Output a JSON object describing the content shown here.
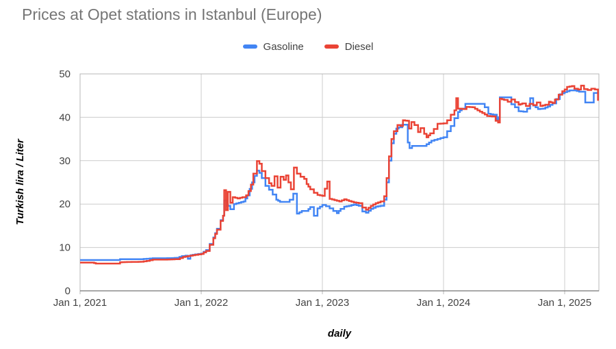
{
  "title": "Prices at Opet stations in Istanbul (Europe)",
  "axis": {
    "y_title": "Turkish lira / Liter",
    "x_title": "daily"
  },
  "colors": {
    "gasoline": "#4285F4",
    "diesel": "#EA4335",
    "title_text": "#757575",
    "axis_text": "#424242",
    "gridline": "#cccccc",
    "plot_border": "#b7b7b7",
    "axis_line": "#757575",
    "background": "#ffffff"
  },
  "chart_data": {
    "type": "line",
    "title": "Prices at Opet stations in Istanbul (Europe)",
    "xlabel": "daily",
    "ylabel": "Turkish lira / Liter",
    "ylim": [
      0,
      50
    ],
    "y_ticks": [
      0,
      10,
      20,
      30,
      40,
      50
    ],
    "x_domain": [
      2021,
      2025.282
    ],
    "x_ticks": [
      {
        "t": 2021,
        "label": "Jan 1, 2021"
      },
      {
        "t": 2022,
        "label": "Jan 1, 2022"
      },
      {
        "t": 2023,
        "label": "Jan 1, 2023"
      },
      {
        "t": 2024,
        "label": "Jan 1, 2024"
      },
      {
        "t": 2025,
        "label": "Jan 1, 2025"
      }
    ],
    "grid": true,
    "legend_position": "top",
    "step_interpolation": true,
    "x_unit": "fractional_year",
    "series": [
      {
        "name": "Gasoline",
        "color": "#4285F4",
        "points": [
          [
            2021.0,
            7.1
          ],
          [
            2021.3,
            7.1
          ],
          [
            2021.33,
            7.3
          ],
          [
            2021.5,
            7.3
          ],
          [
            2021.55,
            7.4
          ],
          [
            2021.6,
            7.5
          ],
          [
            2021.7,
            7.5
          ],
          [
            2021.8,
            7.6
          ],
          [
            2021.84,
            8.0
          ],
          [
            2021.87,
            8.1
          ],
          [
            2021.89,
            7.4
          ],
          [
            2021.91,
            8.2
          ],
          [
            2021.95,
            8.4
          ],
          [
            2022.0,
            8.6
          ],
          [
            2022.04,
            9.4
          ],
          [
            2022.07,
            10.8
          ],
          [
            2022.1,
            12.3
          ],
          [
            2022.13,
            14.3
          ],
          [
            2022.16,
            16.3
          ],
          [
            2022.18,
            17.3
          ],
          [
            2022.19,
            20.8
          ],
          [
            2022.21,
            19.6
          ],
          [
            2022.24,
            18.8
          ],
          [
            2022.27,
            20.0
          ],
          [
            2022.31,
            20.3
          ],
          [
            2022.35,
            20.6
          ],
          [
            2022.38,
            22.0
          ],
          [
            2022.4,
            23.5
          ],
          [
            2022.42,
            25.0
          ],
          [
            2022.44,
            26.5
          ],
          [
            2022.46,
            27.7
          ],
          [
            2022.48,
            27.2
          ],
          [
            2022.5,
            26.0
          ],
          [
            2022.53,
            24.2
          ],
          [
            2022.56,
            23.3
          ],
          [
            2022.59,
            22.2
          ],
          [
            2022.62,
            21.0
          ],
          [
            2022.65,
            20.5
          ],
          [
            2022.7,
            20.5
          ],
          [
            2022.73,
            21.0
          ],
          [
            2022.76,
            22.4
          ],
          [
            2022.79,
            17.8
          ],
          [
            2022.83,
            18.4
          ],
          [
            2022.87,
            18.4
          ],
          [
            2022.9,
            19.3
          ],
          [
            2022.93,
            17.3
          ],
          [
            2022.96,
            19.0
          ],
          [
            2023.0,
            19.8
          ],
          [
            2023.03,
            19.5
          ],
          [
            2023.06,
            19.0
          ],
          [
            2023.09,
            18.4
          ],
          [
            2023.12,
            17.9
          ],
          [
            2023.15,
            18.9
          ],
          [
            2023.18,
            19.4
          ],
          [
            2023.22,
            19.6
          ],
          [
            2023.26,
            19.9
          ],
          [
            2023.3,
            19.6
          ],
          [
            2023.33,
            18.3
          ],
          [
            2023.36,
            18.0
          ],
          [
            2023.4,
            18.9
          ],
          [
            2023.44,
            19.4
          ],
          [
            2023.48,
            19.6
          ],
          [
            2023.51,
            21.0
          ],
          [
            2023.53,
            25.0
          ],
          [
            2023.55,
            30.0
          ],
          [
            2023.57,
            34.0
          ],
          [
            2023.59,
            36.2
          ],
          [
            2023.61,
            37.4
          ],
          [
            2023.63,
            37.7
          ],
          [
            2023.66,
            38.3
          ],
          [
            2023.69,
            38.3
          ],
          [
            2023.705,
            34.2
          ],
          [
            2023.72,
            32.9
          ],
          [
            2023.74,
            33.4
          ],
          [
            2023.83,
            33.4
          ],
          [
            2023.86,
            33.8
          ],
          [
            2023.9,
            34.6
          ],
          [
            2023.95,
            35.0
          ],
          [
            2024.0,
            35.4
          ],
          [
            2024.03,
            36.8
          ],
          [
            2024.06,
            38.0
          ],
          [
            2024.09,
            39.8
          ],
          [
            2024.12,
            41.2
          ],
          [
            2024.15,
            42.0
          ],
          [
            2024.18,
            43.1
          ],
          [
            2024.31,
            43.1
          ],
          [
            2024.34,
            42.3
          ],
          [
            2024.37,
            40.8
          ],
          [
            2024.41,
            40.6
          ],
          [
            2024.44,
            39.5
          ],
          [
            2024.455,
            40.0
          ],
          [
            2024.465,
            44.6
          ],
          [
            2024.53,
            44.6
          ],
          [
            2024.56,
            43.0
          ],
          [
            2024.59,
            42.3
          ],
          [
            2024.62,
            41.4
          ],
          [
            2024.66,
            41.3
          ],
          [
            2024.69,
            42.0
          ],
          [
            2024.715,
            44.4
          ],
          [
            2024.74,
            42.7
          ],
          [
            2024.78,
            41.9
          ],
          [
            2024.82,
            42.0
          ],
          [
            2024.86,
            42.5
          ],
          [
            2024.9,
            43.2
          ],
          [
            2024.93,
            44.2
          ],
          [
            2024.96,
            45.3
          ],
          [
            2025.0,
            45.8
          ],
          [
            2025.04,
            46.2
          ],
          [
            2025.08,
            46.2
          ],
          [
            2025.12,
            45.9
          ],
          [
            2025.15,
            45.9
          ],
          [
            2025.17,
            43.4
          ],
          [
            2025.22,
            43.4
          ],
          [
            2025.24,
            45.6
          ],
          [
            2025.26,
            45.6
          ],
          [
            2025.275,
            44.0
          ]
        ]
      },
      {
        "name": "Diesel",
        "color": "#EA4335",
        "points": [
          [
            2021.0,
            6.5
          ],
          [
            2021.1,
            6.5
          ],
          [
            2021.13,
            6.3
          ],
          [
            2021.3,
            6.3
          ],
          [
            2021.33,
            6.6
          ],
          [
            2021.5,
            6.7
          ],
          [
            2021.55,
            6.9
          ],
          [
            2021.6,
            7.2
          ],
          [
            2021.7,
            7.2
          ],
          [
            2021.8,
            7.3
          ],
          [
            2021.85,
            7.8
          ],
          [
            2021.91,
            8.1
          ],
          [
            2021.95,
            8.3
          ],
          [
            2022.0,
            8.5
          ],
          [
            2022.04,
            9.2
          ],
          [
            2022.07,
            10.6
          ],
          [
            2022.1,
            12.1
          ],
          [
            2022.13,
            14.1
          ],
          [
            2022.16,
            16.1
          ],
          [
            2022.18,
            17.3
          ],
          [
            2022.19,
            23.2
          ],
          [
            2022.205,
            18.6
          ],
          [
            2022.22,
            22.8
          ],
          [
            2022.24,
            20.3
          ],
          [
            2022.26,
            21.6
          ],
          [
            2022.3,
            21.3
          ],
          [
            2022.34,
            21.6
          ],
          [
            2022.37,
            22.0
          ],
          [
            2022.39,
            23.0
          ],
          [
            2022.41,
            24.5
          ],
          [
            2022.43,
            27.0
          ],
          [
            2022.46,
            29.9
          ],
          [
            2022.48,
            29.3
          ],
          [
            2022.5,
            27.6
          ],
          [
            2022.53,
            26.0
          ],
          [
            2022.56,
            24.8
          ],
          [
            2022.58,
            24.2
          ],
          [
            2022.605,
            26.4
          ],
          [
            2022.63,
            23.8
          ],
          [
            2022.655,
            26.3
          ],
          [
            2022.68,
            25.6
          ],
          [
            2022.7,
            26.6
          ],
          [
            2022.72,
            25.0
          ],
          [
            2022.74,
            23.4
          ],
          [
            2022.765,
            28.4
          ],
          [
            2022.79,
            27.0
          ],
          [
            2022.82,
            26.3
          ],
          [
            2022.85,
            25.8
          ],
          [
            2022.87,
            24.6
          ],
          [
            2022.9,
            23.4
          ],
          [
            2022.93,
            22.6
          ],
          [
            2022.96,
            22.1
          ],
          [
            2023.0,
            21.9
          ],
          [
            2023.04,
            25.2
          ],
          [
            2023.06,
            21.2
          ],
          [
            2023.1,
            20.9
          ],
          [
            2023.14,
            20.6
          ],
          [
            2023.18,
            21.1
          ],
          [
            2023.22,
            20.7
          ],
          [
            2023.26,
            20.4
          ],
          [
            2023.3,
            20.2
          ],
          [
            2023.33,
            19.2
          ],
          [
            2023.36,
            18.7
          ],
          [
            2023.4,
            19.6
          ],
          [
            2023.44,
            20.2
          ],
          [
            2023.48,
            20.6
          ],
          [
            2023.51,
            21.8
          ],
          [
            2023.53,
            26.0
          ],
          [
            2023.55,
            31.0
          ],
          [
            2023.57,
            35.0
          ],
          [
            2023.59,
            36.8
          ],
          [
            2023.62,
            38.2
          ],
          [
            2023.645,
            38.0
          ],
          [
            2023.665,
            39.3
          ],
          [
            2023.7,
            39.2
          ],
          [
            2023.715,
            37.4
          ],
          [
            2023.735,
            38.9
          ],
          [
            2023.76,
            38.2
          ],
          [
            2023.79,
            36.6
          ],
          [
            2023.81,
            37.5
          ],
          [
            2023.84,
            36.2
          ],
          [
            2023.86,
            35.4
          ],
          [
            2023.89,
            36.3
          ],
          [
            2023.92,
            37.3
          ],
          [
            2023.95,
            38.5
          ],
          [
            2024.0,
            38.6
          ],
          [
            2024.03,
            39.3
          ],
          [
            2024.06,
            40.6
          ],
          [
            2024.09,
            41.6
          ],
          [
            2024.105,
            44.4
          ],
          [
            2024.12,
            42.0
          ],
          [
            2024.16,
            41.9
          ],
          [
            2024.19,
            42.4
          ],
          [
            2024.24,
            42.3
          ],
          [
            2024.28,
            41.6
          ],
          [
            2024.32,
            41.0
          ],
          [
            2024.36,
            40.3
          ],
          [
            2024.4,
            40.2
          ],
          [
            2024.43,
            39.2
          ],
          [
            2024.45,
            38.8
          ],
          [
            2024.465,
            44.3
          ],
          [
            2024.5,
            44.0
          ],
          [
            2024.53,
            43.6
          ],
          [
            2024.56,
            44.1
          ],
          [
            2024.59,
            43.5
          ],
          [
            2024.62,
            42.9
          ],
          [
            2024.65,
            43.2
          ],
          [
            2024.68,
            42.6
          ],
          [
            2024.71,
            43.1
          ],
          [
            2024.74,
            42.8
          ],
          [
            2024.77,
            43.4
          ],
          [
            2024.8,
            42.6
          ],
          [
            2024.84,
            42.9
          ],
          [
            2024.87,
            43.6
          ],
          [
            2024.9,
            43.3
          ],
          [
            2024.92,
            44.1
          ],
          [
            2024.95,
            45.2
          ],
          [
            2024.98,
            46.0
          ],
          [
            2025.0,
            46.4
          ],
          [
            2025.02,
            47.0
          ],
          [
            2025.06,
            47.2
          ],
          [
            2025.08,
            46.6
          ],
          [
            2025.11,
            46.4
          ],
          [
            2025.135,
            47.3
          ],
          [
            2025.16,
            46.5
          ],
          [
            2025.19,
            46.3
          ],
          [
            2025.22,
            46.6
          ],
          [
            2025.25,
            46.4
          ],
          [
            2025.275,
            43.8
          ]
        ]
      }
    ]
  }
}
